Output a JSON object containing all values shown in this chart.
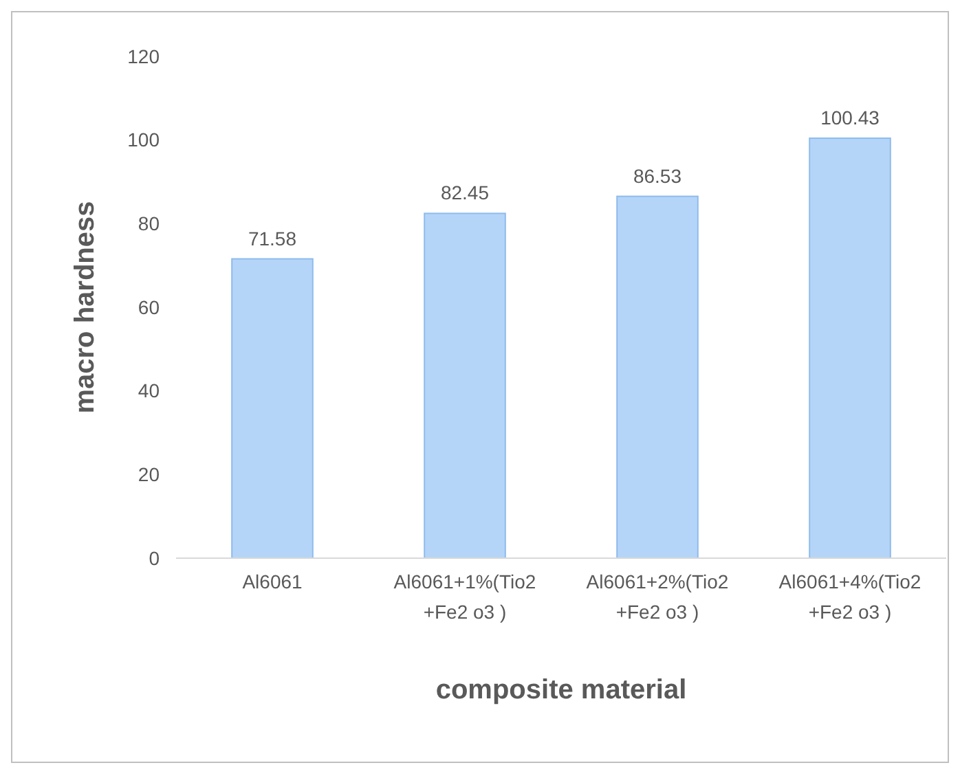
{
  "chart_data": {
    "type": "bar",
    "xlabel": "composite material",
    "ylabel": "macro hardness",
    "categories": [
      "Al6061",
      "Al6061+1%(Tio2 +Fe2 o3 )",
      "Al6061+2%(Tio2 +Fe2 o3 )",
      "Al6061+4%(Tio2 +Fe2 o3 )"
    ],
    "values": [
      71.58,
      82.45,
      86.53,
      100.43
    ],
    "color": "#b4d5f8",
    "ylim": [
      0,
      120
    ],
    "yticks": [
      0,
      20,
      40,
      60,
      80,
      100,
      120
    ],
    "data_labels": true
  }
}
